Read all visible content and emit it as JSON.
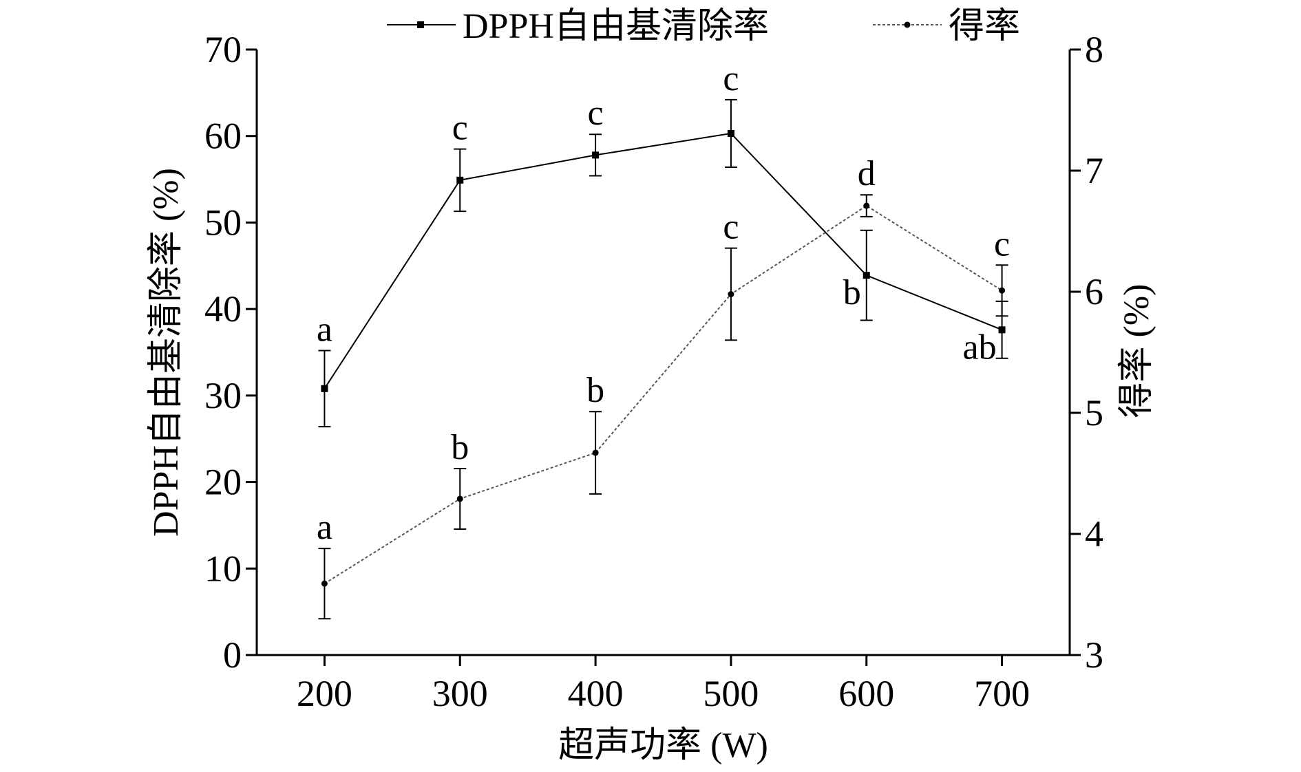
{
  "chart_data": {
    "type": "line",
    "x": [
      200,
      300,
      400,
      500,
      600,
      700
    ],
    "xlabel": "超声功率 (W)",
    "ylabel": "DPPH自由基清除率 (%)",
    "y2label": "得率 (%)",
    "xlim": [
      150,
      750
    ],
    "ylim": [
      0,
      70
    ],
    "y2lim": [
      3,
      8
    ],
    "xticks": [
      "200",
      "300",
      "400",
      "500",
      "600",
      "700"
    ],
    "yticks": [
      "0",
      "10",
      "20",
      "30",
      "40",
      "50",
      "60",
      "70"
    ],
    "y2ticks": [
      "3",
      "4",
      "5",
      "6",
      "7",
      "8"
    ],
    "grid": false,
    "legend_position": "top",
    "series": [
      {
        "name": "DPPH自由基清除率",
        "axis": "left",
        "marker": "square",
        "line_style": "solid",
        "color": "#000000",
        "values": [
          30.8,
          54.9,
          57.8,
          60.3,
          43.9,
          37.6
        ],
        "errors": [
          4.4,
          3.6,
          2.4,
          3.9,
          5.2,
          3.3
        ],
        "labels": [
          "a",
          "c",
          "c",
          "c",
          "b",
          "ab"
        ]
      },
      {
        "name": "得率",
        "axis": "right",
        "marker": "dot",
        "line_style": "dotted",
        "color": "#555555",
        "values": [
          3.59,
          4.29,
          4.67,
          5.98,
          6.71,
          6.01
        ],
        "errors": [
          0.29,
          0.25,
          0.34,
          0.38,
          0.09,
          0.21
        ],
        "labels": [
          "a",
          "b",
          "b",
          "c",
          "d",
          "c"
        ]
      }
    ]
  }
}
